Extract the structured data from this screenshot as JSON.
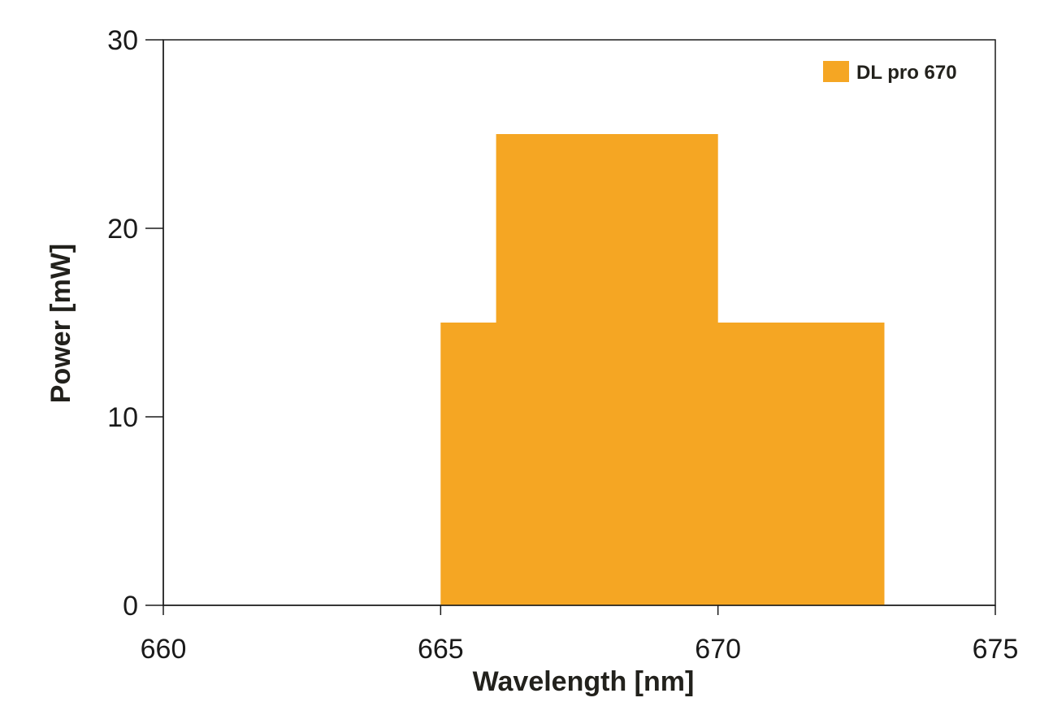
{
  "chart_data": {
    "type": "area",
    "xlabel": "Wavelength [nm]",
    "ylabel": "Power [mW]",
    "xlim": [
      660,
      675
    ],
    "ylim": [
      0,
      30
    ],
    "xticks": [
      "660",
      "665",
      "670",
      "675"
    ],
    "yticks": [
      "0",
      "10",
      "20",
      "30"
    ],
    "grid": false,
    "legend_position": "top-right",
    "series": [
      {
        "name": "DL pro 670",
        "color": "#f5a623",
        "x": [
          665,
          665,
          666,
          666,
          670,
          670,
          673,
          673
        ],
        "y": [
          0,
          15,
          15,
          25,
          25,
          15,
          15,
          0
        ]
      }
    ]
  }
}
